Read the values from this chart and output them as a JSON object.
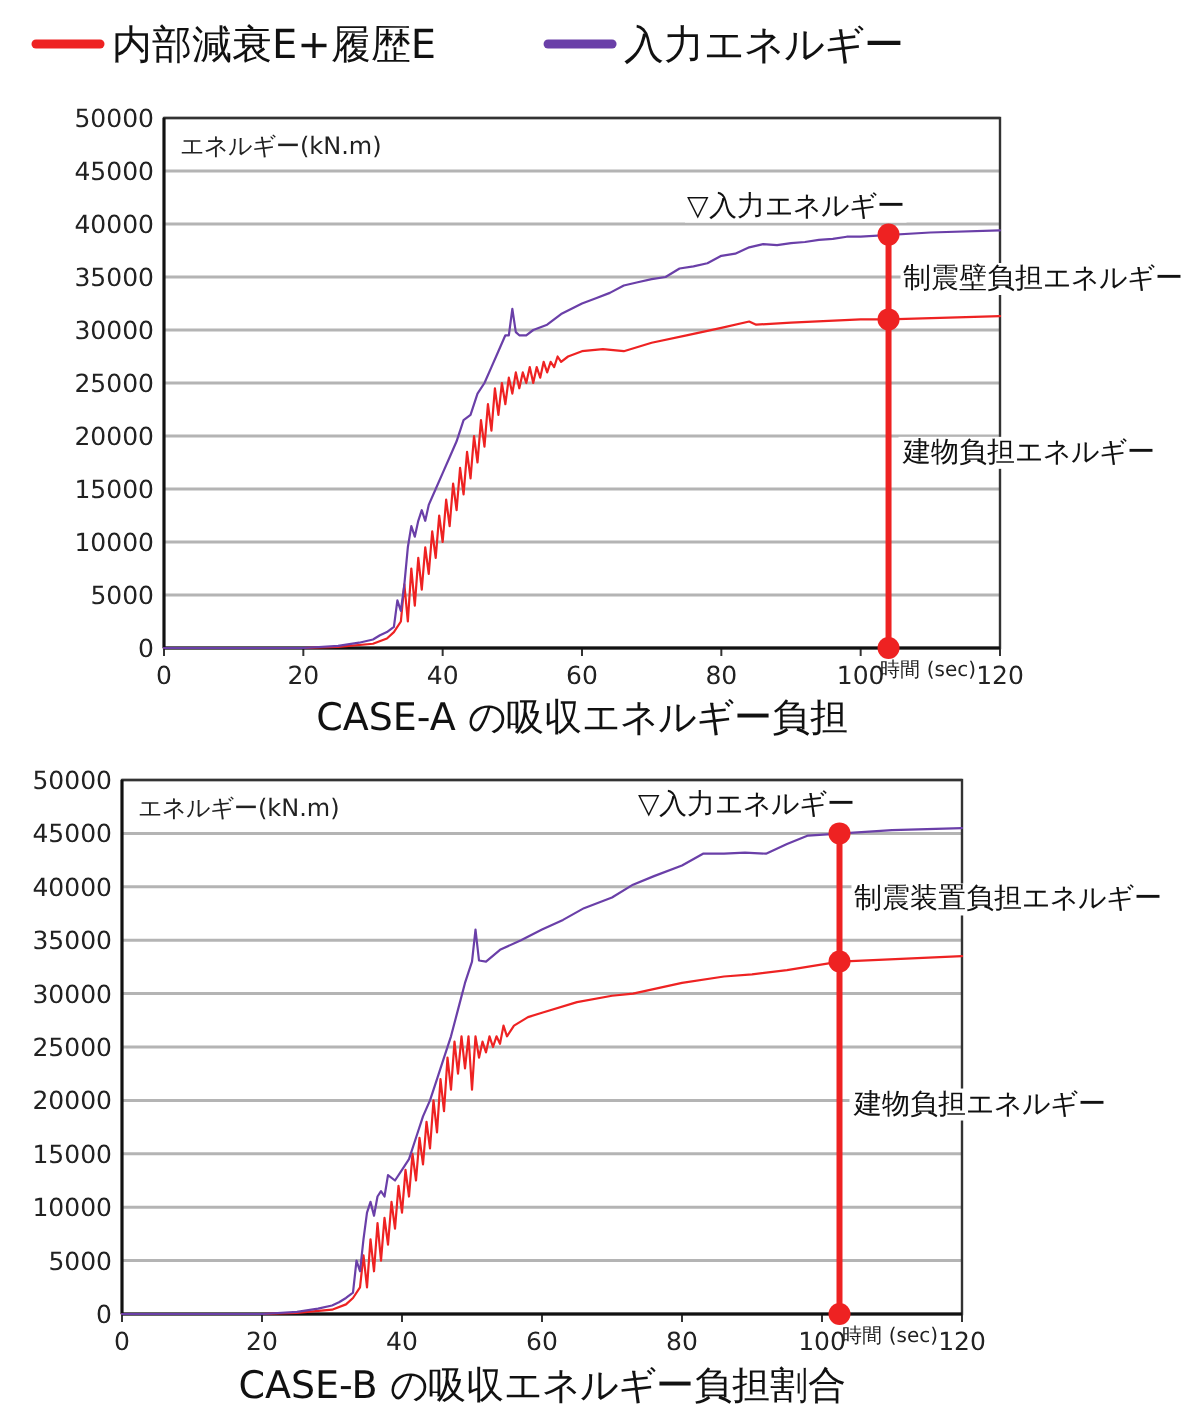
{
  "chart_data": [
    {
      "type": "line",
      "title": "CASE-A の吸収エネルギー負担",
      "xlabel": "時間 (sec)",
      "ylabel": "エネルギー(kN.m)",
      "xlim": [
        0,
        120
      ],
      "xticks": [
        0,
        20,
        40,
        60,
        80,
        100,
        120
      ],
      "ylim": [
        0,
        50000
      ],
      "yticks": [
        0,
        5000,
        10000,
        15000,
        20000,
        25000,
        30000,
        35000,
        40000,
        45000,
        50000
      ],
      "grid": "y",
      "legend": "top",
      "series": [
        {
          "name": "内部減衰E+履歴E",
          "color": "#ee2222",
          "x": [
            0,
            20,
            25,
            30,
            32,
            33,
            34,
            34.5,
            35,
            35.5,
            36,
            36.5,
            37,
            37.5,
            38,
            38.5,
            39,
            39.5,
            40,
            40.5,
            41,
            41.5,
            42,
            42.5,
            43,
            43.5,
            44,
            44.5,
            45,
            45.5,
            46,
            46.5,
            47,
            47.5,
            48,
            48.5,
            49,
            49.5,
            50,
            50.5,
            51,
            51.5,
            52,
            52.5,
            53,
            53.5,
            54,
            54.5,
            55,
            55.5,
            56,
            56.5,
            57,
            58,
            60,
            63,
            66,
            70,
            75,
            80,
            84,
            85,
            90,
            100,
            104,
            120
          ],
          "values": [
            0,
            0,
            100,
            400,
            900,
            1500,
            2500,
            6000,
            2500,
            7500,
            4000,
            8500,
            5500,
            9500,
            7000,
            11000,
            8500,
            12500,
            10000,
            14000,
            11500,
            15500,
            13000,
            17000,
            14500,
            18500,
            16000,
            20000,
            17500,
            21500,
            19000,
            23000,
            20500,
            24500,
            22000,
            25000,
            23000,
            25500,
            24000,
            26000,
            24500,
            26000,
            25000,
            26500,
            25000,
            26500,
            25500,
            27000,
            26000,
            27000,
            26500,
            27500,
            27000,
            27500,
            28000,
            28200,
            28000,
            28800,
            29500,
            30200,
            30800,
            30500,
            30700,
            31000,
            31000,
            31300
          ]
        },
        {
          "name": "入力エネルギー",
          "color": "#6a3fa8",
          "x": [
            0,
            20,
            25,
            28,
            30,
            31,
            32,
            33,
            33.5,
            34,
            34.5,
            35,
            35.5,
            36,
            36.5,
            37,
            37.5,
            38,
            39,
            40,
            41,
            42,
            43,
            44,
            45,
            46,
            47,
            48,
            49,
            49.5,
            50,
            50.5,
            51,
            52,
            53,
            55,
            57,
            60,
            62,
            64,
            66,
            68,
            70,
            72,
            74,
            76,
            78,
            80,
            82,
            84,
            86,
            88,
            90,
            92,
            94,
            96,
            98,
            100,
            110,
            120
          ],
          "values": [
            0,
            0,
            200,
            500,
            800,
            1200,
            1500,
            2000,
            4500,
            3500,
            6000,
            9500,
            11500,
            10500,
            12000,
            13000,
            12000,
            13500,
            15000,
            16500,
            18000,
            19500,
            21500,
            22000,
            24000,
            25000,
            26500,
            28000,
            29500,
            29500,
            32000,
            29800,
            29500,
            29500,
            30000,
            30500,
            31500,
            32500,
            33000,
            33500,
            34200,
            34500,
            34800,
            35000,
            35800,
            36000,
            36300,
            37000,
            37200,
            37800,
            38100,
            38000,
            38200,
            38300,
            38500,
            38600,
            38800,
            38800,
            39200,
            39400
          ]
        },
        {
          "type": "line",
          "marker": "circle",
          "color": "#ee2222",
          "x": [
            104,
            104,
            104
          ],
          "values": [
            0,
            31000,
            39000
          ]
        }
      ],
      "annotations": [
        "▽入力エネルギー",
        "制震壁負担エネルギー",
        "建物負担エネルギー"
      ]
    },
    {
      "type": "line",
      "title": "CASE-B の吸収エネルギー負担割合",
      "xlabel": "時間 (sec)",
      "ylabel": "エネルギー(kN.m)",
      "xlim": [
        0,
        120
      ],
      "xticks": [
        0,
        20,
        40,
        60,
        80,
        100,
        120
      ],
      "ylim": [
        0,
        50000
      ],
      "yticks": [
        0,
        5000,
        10000,
        15000,
        20000,
        25000,
        30000,
        35000,
        40000,
        45000,
        50000
      ],
      "grid": "y",
      "series": [
        {
          "color": "#ee2222",
          "x": [
            0,
            20,
            25,
            30,
            32,
            33,
            34,
            34.5,
            35,
            35.5,
            36,
            36.5,
            37,
            37.5,
            38,
            38.5,
            39,
            39.5,
            40,
            40.5,
            41,
            41.5,
            42,
            42.5,
            43,
            43.5,
            44,
            44.5,
            45,
            45.5,
            46,
            46.5,
            47,
            47.5,
            48,
            48.5,
            49,
            49.5,
            50,
            50.5,
            51,
            51.5,
            52,
            52.5,
            53,
            53.5,
            54,
            54.5,
            55,
            56,
            58,
            60,
            65,
            70,
            73,
            80,
            86,
            90,
            95,
            102.5,
            120
          ],
          "values": [
            0,
            0,
            100,
            400,
            900,
            1500,
            2500,
            5500,
            2500,
            7000,
            4000,
            8500,
            5000,
            9000,
            6500,
            10500,
            8000,
            12000,
            9500,
            13500,
            11000,
            15000,
            12500,
            16500,
            14000,
            18000,
            15500,
            20000,
            17000,
            22000,
            19000,
            24000,
            21000,
            25500,
            22500,
            26000,
            23000,
            26000,
            21000,
            26000,
            24000,
            25500,
            24500,
            26000,
            25000,
            26000,
            25300,
            27000,
            26000,
            27000,
            27800,
            28200,
            29200,
            29800,
            30000,
            31000,
            31600,
            31800,
            32200,
            33000,
            33500
          ]
        },
        {
          "color": "#6a3fa8",
          "x": [
            0,
            20,
            25,
            28,
            30,
            31,
            32,
            33,
            33.5,
            34,
            34.5,
            35,
            35.5,
            36,
            36.5,
            37,
            37.5,
            38,
            39,
            40,
            41,
            42,
            43,
            44,
            45,
            46,
            47,
            48,
            49,
            50,
            50.5,
            51,
            52,
            54,
            57,
            60,
            63,
            66,
            70,
            73,
            76,
            80,
            83,
            86,
            89,
            92,
            95,
            98,
            110,
            120
          ],
          "values": [
            0,
            0,
            200,
            500,
            800,
            1100,
            1500,
            2000,
            5000,
            4000,
            7000,
            9500,
            10500,
            9200,
            11000,
            11500,
            11000,
            13000,
            12500,
            13500,
            14500,
            16500,
            18500,
            20000,
            22000,
            24000,
            26000,
            28500,
            31000,
            33000,
            36000,
            33100,
            33000,
            34100,
            35000,
            36000,
            36900,
            38000,
            39000,
            40200,
            41000,
            42000,
            43100,
            43100,
            43200,
            43100,
            44000,
            44800,
            45300,
            45500
          ]
        },
        {
          "type": "line",
          "marker": "circle",
          "color": "#ee2222",
          "x": [
            102.5,
            102.5,
            102.5
          ],
          "values": [
            0,
            33000,
            45000
          ]
        }
      ],
      "annotations": [
        "▽入力エネルギー",
        "制震装置負担エネルギー",
        "建物負担エネルギー"
      ]
    }
  ]
}
